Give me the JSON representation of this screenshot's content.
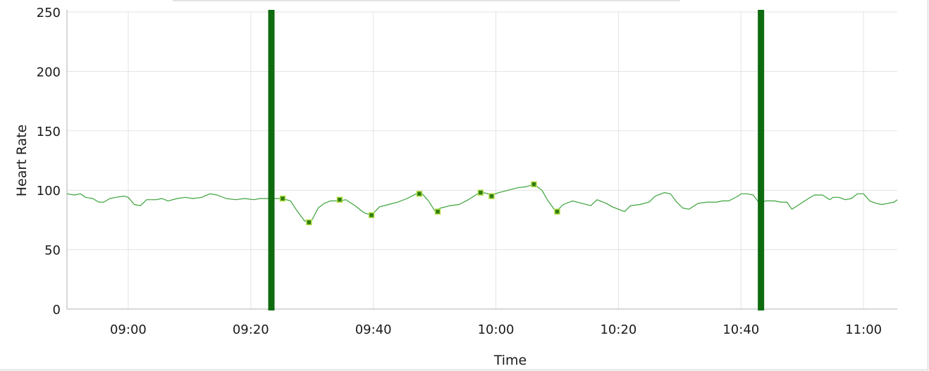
{
  "chart_data": {
    "type": "line",
    "title": "",
    "xlabel": "Time",
    "ylabel": "Heart Rate",
    "x_range_minutes_of_day": [
      530,
      665.5
    ],
    "ylim": [
      0,
      250
    ],
    "y_ticks": [
      0,
      50,
      100,
      150,
      200,
      250
    ],
    "x_ticks": [
      {
        "label": "09:00",
        "minute": 540
      },
      {
        "label": "09:20",
        "minute": 560
      },
      {
        "label": "09:40",
        "minute": 580
      },
      {
        "label": "10:00",
        "minute": 600
      },
      {
        "label": "10:20",
        "minute": 620
      },
      {
        "label": "10:40",
        "minute": 640
      },
      {
        "label": "11:00",
        "minute": 660
      }
    ],
    "grid": true,
    "series": [
      {
        "color": "#3aa33a",
        "points": [
          [
            530.0,
            97
          ],
          [
            531.2,
            96
          ],
          [
            532.2,
            97
          ],
          [
            533.0,
            94
          ],
          [
            534.2,
            93
          ],
          [
            535.2,
            90
          ],
          [
            536.0,
            90
          ],
          [
            537.0,
            93
          ],
          [
            538.0,
            94
          ],
          [
            539.3,
            95
          ],
          [
            540.0,
            94
          ],
          [
            541.0,
            88
          ],
          [
            542.0,
            87
          ],
          [
            543.0,
            92
          ],
          [
            544.5,
            92
          ],
          [
            545.5,
            93
          ],
          [
            546.5,
            91
          ],
          [
            548.0,
            93
          ],
          [
            549.3,
            94
          ],
          [
            550.5,
            93
          ],
          [
            552.0,
            94
          ],
          [
            553.3,
            97
          ],
          [
            554.5,
            96
          ],
          [
            556.0,
            93
          ],
          [
            557.5,
            92
          ],
          [
            559.0,
            93
          ],
          [
            560.5,
            92
          ],
          [
            561.5,
            93
          ],
          [
            563.0,
            93
          ],
          [
            564.0,
            93
          ],
          [
            565.2,
            93
          ],
          [
            566.5,
            91
          ],
          [
            567.5,
            83
          ],
          [
            568.8,
            74
          ],
          [
            570.0,
            75
          ],
          [
            571.0,
            85
          ],
          [
            572.0,
            89
          ],
          [
            573.0,
            91
          ],
          [
            574.5,
            91
          ],
          [
            575.5,
            92
          ],
          [
            577.0,
            87
          ],
          [
            578.5,
            81
          ],
          [
            579.7,
            79
          ],
          [
            581.0,
            86
          ],
          [
            582.5,
            88
          ],
          [
            584.0,
            90
          ],
          [
            585.5,
            93
          ],
          [
            587.0,
            97
          ],
          [
            588.0,
            97
          ],
          [
            589.0,
            91
          ],
          [
            590.0,
            83
          ],
          [
            591.0,
            85
          ],
          [
            592.5,
            87
          ],
          [
            594.0,
            88
          ],
          [
            595.5,
            92
          ],
          [
            597.0,
            97
          ],
          [
            598.0,
            98
          ],
          [
            599.3,
            96
          ],
          [
            600.5,
            98
          ],
          [
            602.0,
            100
          ],
          [
            603.5,
            102
          ],
          [
            605.0,
            103
          ],
          [
            606.2,
            105
          ],
          [
            607.5,
            100
          ],
          [
            608.5,
            91
          ],
          [
            609.8,
            82
          ],
          [
            611.0,
            88
          ],
          [
            612.5,
            91
          ],
          [
            614.0,
            89
          ],
          [
            615.5,
            87
          ],
          [
            616.5,
            92
          ],
          [
            618.0,
            89
          ],
          [
            619.0,
            86
          ],
          [
            620.0,
            84
          ],
          [
            621.0,
            82
          ],
          [
            622.0,
            87
          ],
          [
            623.5,
            88
          ],
          [
            625.0,
            90
          ],
          [
            626.0,
            95
          ],
          [
            627.5,
            98
          ],
          [
            628.5,
            97
          ],
          [
            629.5,
            90
          ],
          [
            630.5,
            85
          ],
          [
            631.5,
            84
          ],
          [
            633.0,
            89
          ],
          [
            634.5,
            90
          ],
          [
            636.0,
            90
          ],
          [
            637.0,
            91
          ],
          [
            638.0,
            91
          ],
          [
            639.5,
            95
          ],
          [
            640.0,
            97
          ],
          [
            641.0,
            97
          ],
          [
            642.0,
            96
          ],
          [
            643.0,
            89
          ],
          [
            644.0,
            91
          ],
          [
            645.5,
            91
          ],
          [
            646.5,
            90
          ],
          [
            647.5,
            90
          ],
          [
            648.3,
            84
          ],
          [
            649.5,
            88
          ],
          [
            651.0,
            93
          ],
          [
            652.0,
            96
          ],
          [
            653.3,
            96
          ],
          [
            654.5,
            92
          ],
          [
            655.0,
            94
          ],
          [
            656.0,
            94
          ],
          [
            657.0,
            92
          ],
          [
            658.0,
            93
          ],
          [
            659.0,
            97
          ],
          [
            660.0,
            97
          ],
          [
            661.0,
            91
          ],
          [
            662.0,
            89
          ],
          [
            663.0,
            88
          ],
          [
            664.0,
            89
          ],
          [
            665.0,
            90
          ],
          [
            665.5,
            92
          ]
        ],
        "markers": [
          [
            565.2,
            93
          ],
          [
            569.5,
            73
          ],
          [
            574.5,
            92
          ],
          [
            579.7,
            79
          ],
          [
            587.5,
            97
          ],
          [
            590.5,
            82
          ],
          [
            597.5,
            98
          ],
          [
            599.3,
            95
          ],
          [
            606.2,
            105
          ],
          [
            610.0,
            82
          ]
        ]
      }
    ],
    "vertical_markers": [
      {
        "minute": 563.3,
        "color": "#0e6b0e"
      },
      {
        "minute": 643.2,
        "color": "#0e6b0e"
      }
    ],
    "colors": {
      "line": "#3aa33a",
      "marker_fill": "#2e7d12",
      "marker_stroke": "#b7e04a",
      "vertical_marker": "#0e6b0e",
      "grid": "#e3e3e3",
      "axis": "#b0b0b0"
    }
  }
}
